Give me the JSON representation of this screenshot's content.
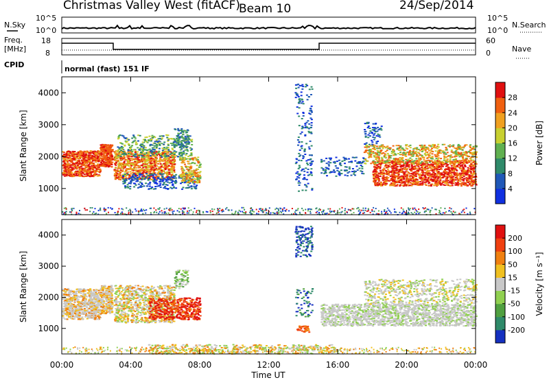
{
  "header": {
    "station": "Christmas Valley West (fitACF)",
    "beam": "Beam 10",
    "date": "24/Sep/2014"
  },
  "strip_labels": {
    "nsky": "N.Sky",
    "nsearch": "N.Search",
    "freq_line1": "Freq.",
    "freq_line2": "[MHz]",
    "nave": "Nave",
    "cpid": "CPID",
    "cpid_value": "normal (fast) 151 IF",
    "noise_left_top": "10^5",
    "noise_left_bottom": "10^0",
    "noise_right_top": "10^5",
    "noise_right_bottom": "10^0",
    "freq_top": "18",
    "freq_bottom": "8",
    "nave_top": "60",
    "nave_bottom": "0"
  },
  "chart_data": [
    {
      "type": "heatmap",
      "name": "power",
      "ylabel": "Slant Range [km]",
      "ylim": [
        180,
        4500
      ],
      "yticks": [
        "1000",
        "2000",
        "3000",
        "4000"
      ],
      "colorbar_label": "Power [dB]",
      "colorbar_ticks": [
        "4",
        "8",
        "12",
        "16",
        "20",
        "24",
        "28"
      ],
      "colors": [
        "#1030e0",
        "#2058b8",
        "#2f8a6a",
        "#60b050",
        "#c8d030",
        "#f0a020",
        "#f06010",
        "#e01010"
      ]
    },
    {
      "type": "heatmap",
      "name": "velocity",
      "ylabel": "Slant Range [km]",
      "ylim": [
        180,
        4500
      ],
      "yticks": [
        "1000",
        "2000",
        "3000",
        "4000"
      ],
      "xlabel": "Time UT",
      "xticks": [
        "00:00",
        "04:00",
        "08:00",
        "12:00",
        "16:00",
        "20:00",
        "00:00"
      ],
      "colorbar_label": "Velocity [m s⁻¹]",
      "colorbar_ticks": [
        "200",
        "100",
        "50",
        "15",
        "-15",
        "-50",
        "-100",
        "-200"
      ],
      "colors": [
        "#1530c0",
        "#2f8a6a",
        "#50a040",
        "#90d050",
        "#c8c8c8",
        "#f0c020",
        "#f08010",
        "#f04010",
        "#e01010"
      ]
    }
  ]
}
